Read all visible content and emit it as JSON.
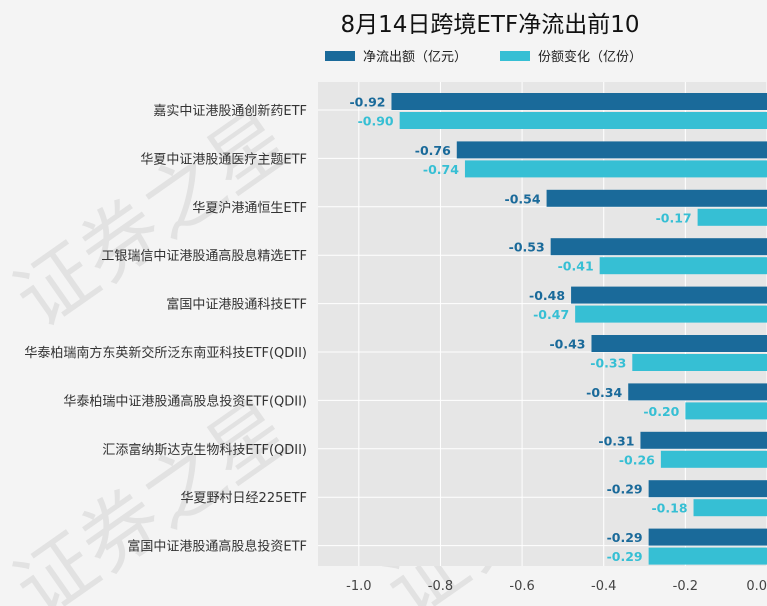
{
  "chart_data": {
    "type": "bar",
    "orientation": "horizontal",
    "title": "8月14日跨境ETF净流出前10",
    "xlabel": "",
    "ylabel": "",
    "xlim": [
      -1.1,
      0.0
    ],
    "xticks": [
      -1.0,
      -0.8,
      -0.6,
      -0.4,
      -0.2,
      0.0
    ],
    "grid": true,
    "legend_position": "top",
    "categories": [
      "嘉实中证港股通创新药ETF",
      "华夏中证港股通医疗主题ETF",
      "华夏沪港通恒生ETF",
      "工银瑞信中证港股通高股息精选ETF",
      "富国中证港股通科技ETF",
      "华泰柏瑞南方东英新交所泛东南亚科技ETF(QDII)",
      "华泰柏瑞中证港股通高股息投资ETF(QDII)",
      "汇添富纳斯达克生物科技ETF(QDII)",
      "华夏野村日经225ETF",
      "富国中证港股通高股息投资ETF"
    ],
    "series": [
      {
        "name": "净流出额（亿元）",
        "color": "#1a6a9a",
        "values": [
          -0.92,
          -0.76,
          -0.54,
          -0.53,
          -0.48,
          -0.43,
          -0.34,
          -0.31,
          -0.29,
          -0.29
        ]
      },
      {
        "name": "份额变化（亿份）",
        "color": "#36bfd4",
        "values": [
          -0.9,
          -0.74,
          -0.17,
          -0.41,
          -0.47,
          -0.33,
          -0.2,
          -0.26,
          -0.18,
          -0.29
        ]
      }
    ],
    "watermark": "证券之星"
  }
}
